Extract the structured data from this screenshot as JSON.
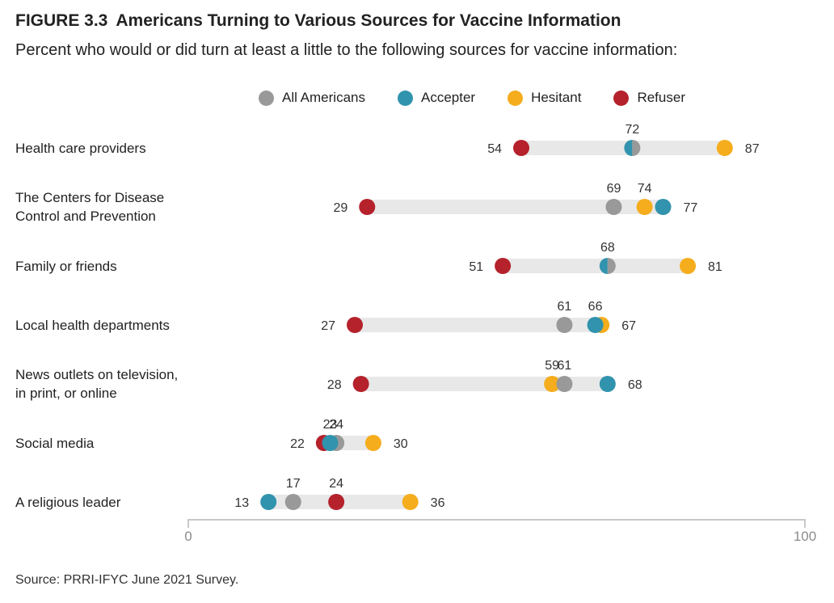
{
  "title": {
    "figure_number": "FIGURE 3.3",
    "text": "Americans Turning to Various Sources for Vaccine Information"
  },
  "subtitle": "Percent who would or did turn at least a little to the following sources for vaccine information:",
  "source": "Source: PRRI-IFYC June 2021 Survey.",
  "colors": {
    "track": "#e8e8e8",
    "axis": "#c8c8c8"
  },
  "chart_data": {
    "type": "dot",
    "title": "Americans Turning to Various Sources for Vaccine Information",
    "xlim": [
      0,
      100
    ],
    "x_ticks": [
      0,
      100
    ],
    "legend_position": "top",
    "series": [
      {
        "name": "All Americans",
        "color": "#999999"
      },
      {
        "name": "Accepter",
        "color": "#3193ad"
      },
      {
        "name": "Hesitant",
        "color": "#f5ad1d"
      },
      {
        "name": "Refuser",
        "color": "#b5222c"
      }
    ],
    "categories": [
      "Health care providers",
      "The Centers for Disease\nControl and Prevention",
      "Family or friends",
      "Local health departments",
      "News outlets on television,\nin print, or online",
      "Social media",
      "A religious leader"
    ],
    "values": {
      "All Americans": [
        72,
        69,
        68,
        61,
        61,
        24,
        17
      ],
      "Accepter": [
        72,
        77,
        68,
        66,
        68,
        23,
        13
      ],
      "Hesitant": [
        87,
        74,
        81,
        67,
        59,
        30,
        36
      ],
      "Refuser": [
        54,
        29,
        51,
        27,
        28,
        22,
        24
      ]
    },
    "data_labels": [
      [
        "54",
        "72",
        "87"
      ],
      [
        "29",
        "69",
        "74",
        "77"
      ],
      [
        "51",
        "68",
        "81"
      ],
      [
        "27",
        "61",
        "66",
        "67"
      ],
      [
        "28",
        "59",
        "61",
        "68"
      ],
      [
        "22",
        "23",
        "24",
        "30"
      ],
      [
        "13",
        "17",
        "24",
        "36"
      ]
    ]
  }
}
